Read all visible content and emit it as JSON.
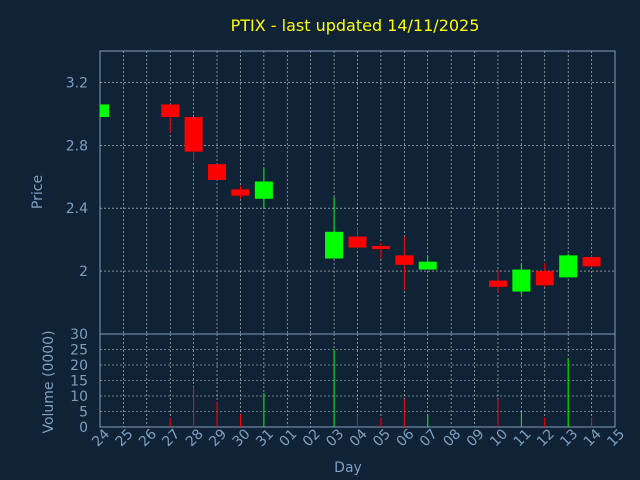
{
  "chart_data": {
    "type": "candlestick",
    "title": "PTIX - last updated 14/11/2025",
    "xlabel": "Day",
    "x_ticks": [
      "24",
      "25",
      "26",
      "27",
      "28",
      "29",
      "30",
      "31",
      "01",
      "02",
      "03",
      "04",
      "05",
      "06",
      "07",
      "08",
      "09",
      "10",
      "11",
      "12",
      "13",
      "14",
      "15"
    ],
    "price_panel": {
      "ylabel": "Price",
      "ylim": [
        1.6,
        3.4
      ],
      "yticks": [
        "3.2",
        "2.8",
        "2.4",
        "2"
      ],
      "ytick_values": [
        3.2,
        2.8,
        2.4,
        2.0
      ],
      "grid": true
    },
    "volume_panel": {
      "ylabel": "Volume (0000)",
      "ylim": [
        0,
        30
      ],
      "yticks": [
        "30",
        "25",
        "20",
        "15",
        "10",
        "5",
        "0"
      ],
      "ytick_values": [
        30,
        25,
        20,
        15,
        10,
        5,
        0
      ],
      "grid": true
    },
    "up_color": "#00ff00",
    "down_color": "#ff0000",
    "candles": [
      {
        "day": "24",
        "open": 2.98,
        "high": 3.06,
        "low": 2.98,
        "close": 3.06,
        "volume": 0
      },
      {
        "day": "27",
        "open": 3.06,
        "high": 3.06,
        "low": 2.88,
        "close": 2.98,
        "volume": 3
      },
      {
        "day": "28",
        "open": 2.98,
        "high": 2.98,
        "low": 2.7,
        "close": 2.76,
        "volume": 13
      },
      {
        "day": "29",
        "open": 2.68,
        "high": 2.68,
        "low": 2.58,
        "close": 2.58,
        "volume": 8
      },
      {
        "day": "30",
        "open": 2.52,
        "high": 2.54,
        "low": 2.46,
        "close": 2.48,
        "volume": 4
      },
      {
        "day": "31",
        "open": 2.46,
        "high": 2.66,
        "low": 2.4,
        "close": 2.57,
        "volume": 11
      },
      {
        "day": "03",
        "open": 2.08,
        "high": 2.47,
        "low": 2.08,
        "close": 2.25,
        "volume": 25
      },
      {
        "day": "04",
        "open": 2.22,
        "high": 2.28,
        "low": 2.14,
        "close": 2.15,
        "volume": 4
      },
      {
        "day": "05",
        "open": 2.16,
        "high": 2.18,
        "low": 2.08,
        "close": 2.14,
        "volume": 3
      },
      {
        "day": "06",
        "open": 2.1,
        "high": 2.22,
        "low": 1.88,
        "close": 2.04,
        "volume": 9
      },
      {
        "day": "07",
        "open": 2.01,
        "high": 2.1,
        "low": 2.01,
        "close": 2.06,
        "volume": 4
      },
      {
        "day": "10",
        "open": 1.94,
        "high": 2.01,
        "low": 1.86,
        "close": 1.9,
        "volume": 9
      },
      {
        "day": "11",
        "open": 1.87,
        "high": 2.05,
        "low": 1.85,
        "close": 2.01,
        "volume": 5
      },
      {
        "day": "12",
        "open": 2.0,
        "high": 2.05,
        "low": 1.9,
        "close": 1.91,
        "volume": 3
      },
      {
        "day": "13",
        "open": 1.96,
        "high": 2.11,
        "low": 1.96,
        "close": 2.1,
        "volume": 22
      },
      {
        "day": "14",
        "open": 2.09,
        "high": 2.1,
        "low": 2.02,
        "close": 2.03,
        "volume": 3
      }
    ]
  }
}
